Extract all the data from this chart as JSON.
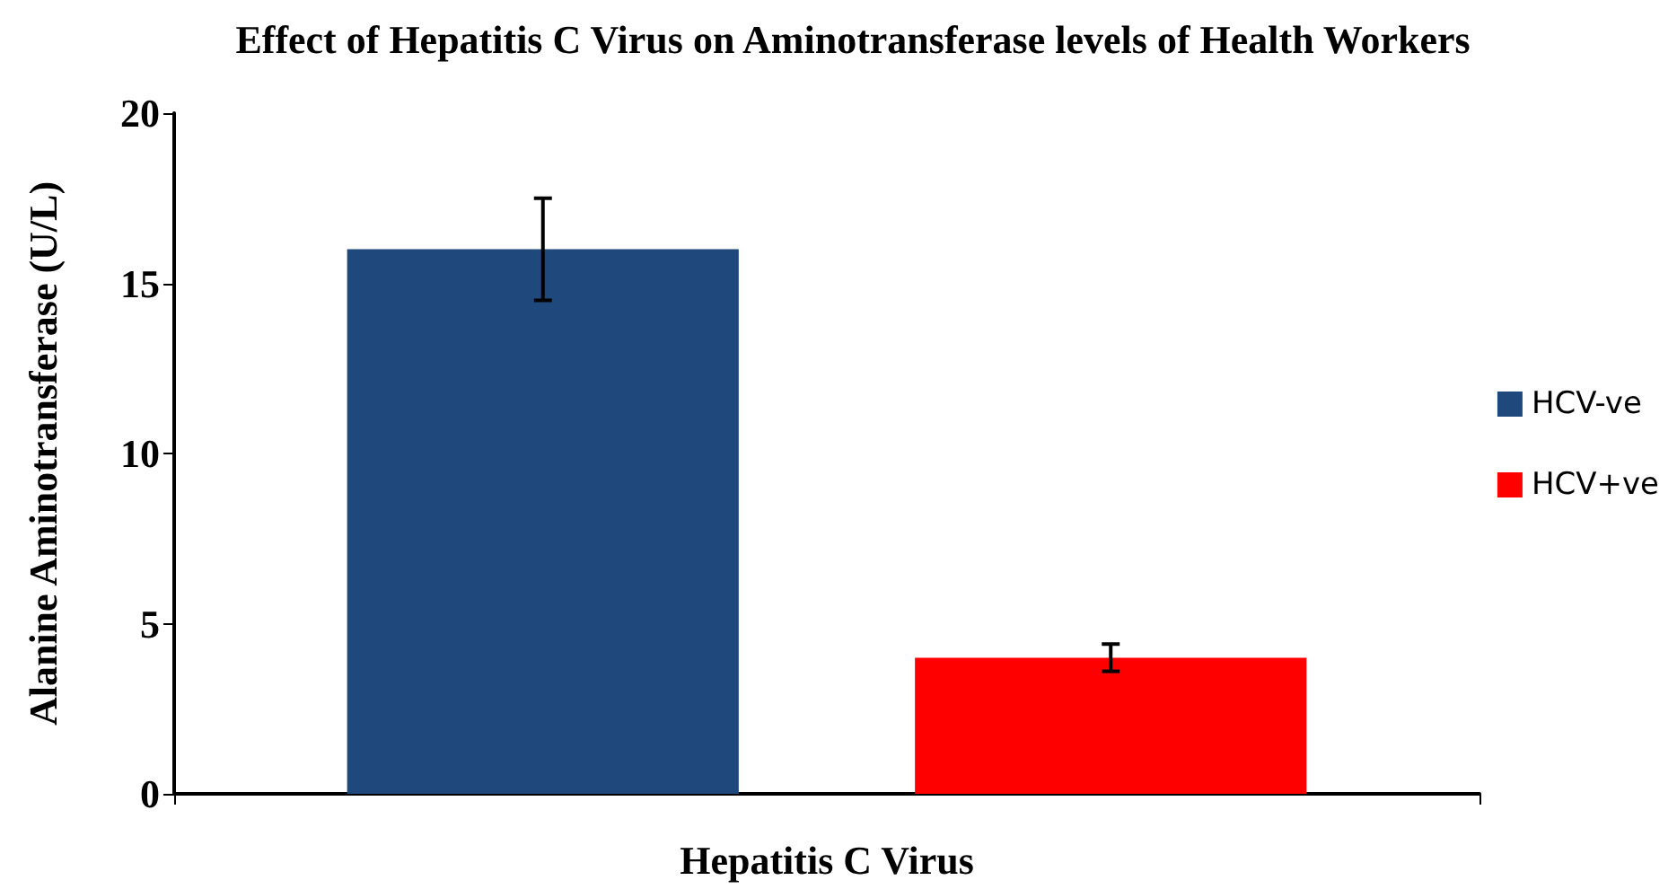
{
  "chart_data": {
    "type": "bar",
    "title": "Effect of Hepatitis C Virus on Aminotransferase levels of Health Workers",
    "xlabel": "Hepatitis C Virus",
    "ylabel": "Alanine Aminotransferase (U/L)",
    "categories": [
      null
    ],
    "series": [
      {
        "name": "HCV-ve",
        "color": "#1f497d",
        "values": [
          16
        ],
        "errors": [
          1.5
        ]
      },
      {
        "name": "HCV+ve",
        "color": "#ff0000",
        "values": [
          4
        ],
        "errors": [
          0.4
        ]
      }
    ],
    "ylim": [
      0,
      20
    ],
    "yticks": [
      0,
      5,
      10,
      15,
      20
    ],
    "grid": false,
    "legend": "right"
  }
}
